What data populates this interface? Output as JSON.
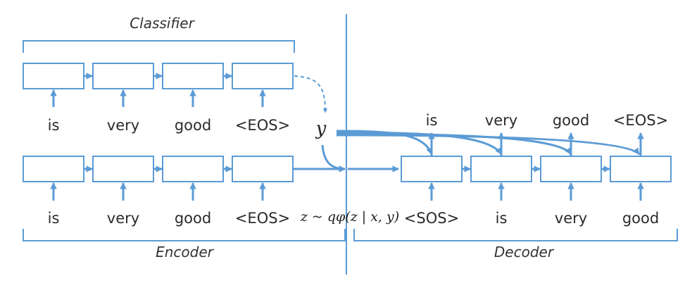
{
  "colors": {
    "accent": "#5b9bd5",
    "text": "#2b2b2b"
  },
  "labels": {
    "classifier": "Classifier",
    "encoder": "Encoder",
    "decoder": "Decoder",
    "y": "y",
    "z_eq": "z ~ qφ(z | x, y)"
  },
  "classifier_tokens": [
    "is",
    "very",
    "good",
    "<EOS>"
  ],
  "encoder_tokens": [
    "is",
    "very",
    "good",
    "<EOS>"
  ],
  "decoder_inputs": [
    "<SOS>",
    "is",
    "very",
    "good"
  ],
  "decoder_outputs": [
    "is",
    "very",
    "good",
    "<EOS>"
  ]
}
